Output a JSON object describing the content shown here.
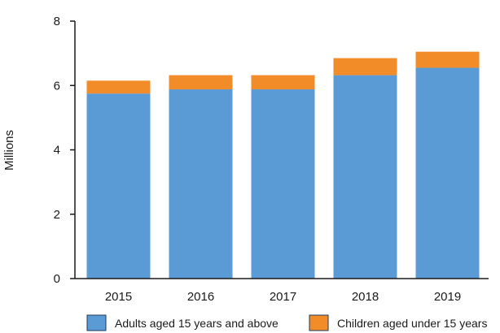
{
  "chart_data": {
    "type": "bar",
    "stacked": true,
    "categories": [
      "2015",
      "2016",
      "2017",
      "2018",
      "2019"
    ],
    "series": [
      {
        "name": "Adults aged 15 years and above",
        "color": "#5b9bd5",
        "values": [
          5.75,
          5.88,
          5.88,
          6.32,
          6.55
        ]
      },
      {
        "name": "Children aged under 15 years",
        "color": "#f28c28",
        "values": [
          0.4,
          0.44,
          0.44,
          0.53,
          0.5
        ]
      }
    ],
    "ylabel": "Millions",
    "ylim": [
      0,
      8
    ],
    "yticks": [
      "0",
      "2",
      "4",
      "6",
      "8"
    ],
    "grid": false,
    "legend_position": "bottom"
  }
}
